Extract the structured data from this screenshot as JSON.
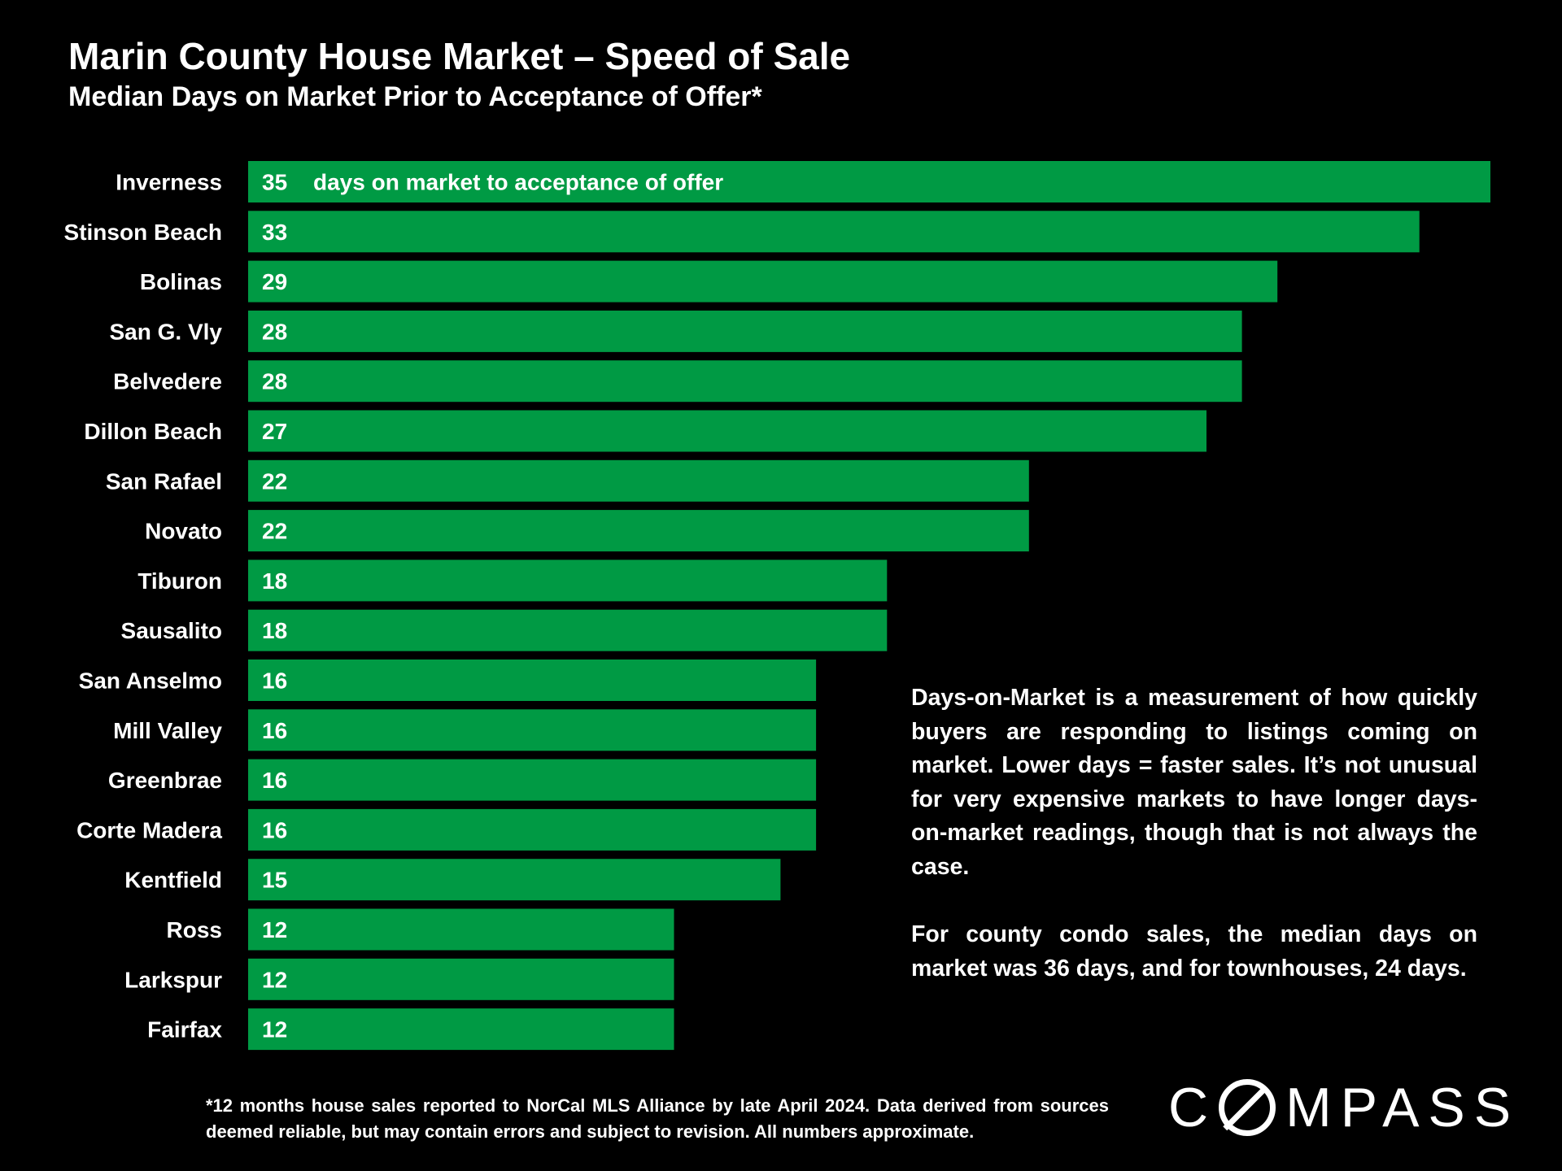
{
  "chart_data": {
    "type": "bar",
    "orientation": "horizontal",
    "title": "Marin County House Market – Speed of Sale",
    "subtitle": "Median Days on Market Prior to Acceptance of Offer*",
    "categories": [
      "Inverness",
      "Stinson Beach",
      "Bolinas",
      "San G. Vly",
      "Belvedere",
      "Dillon Beach",
      "San Rafael",
      "Novato",
      "Tiburon",
      "Sausalito",
      "San Anselmo",
      "Mill Valley",
      "Greenbrae",
      "Corte Madera",
      "Kentfield",
      "Ross",
      "Larkspur",
      "Fairfax"
    ],
    "values": [
      35,
      33,
      29,
      28,
      28,
      27,
      22,
      22,
      18,
      18,
      16,
      16,
      16,
      16,
      15,
      12,
      12,
      12
    ],
    "value_annotation": "days on market to acceptance of offer",
    "xlim": [
      0,
      35
    ],
    "grid": false,
    "bar_color": "#009A44",
    "background": "#000000"
  },
  "note": {
    "paragraph_1": "Days-on-Market is a measurement of how quickly buyers are responding to listings coming on market. Lower days = faster sales. It’s not unusual for very expensive markets to have longer days-on-market readings, though that is not always the case.",
    "paragraph_2": "For county condo sales, the median days on market was 36 days, and for townhouses, 24 days."
  },
  "footnote": "*12 months house sales reported to NorCal MLS Alliance by late April 2024. Data derived from sources deemed reliable, but may contain errors and subject to revision. All numbers approximate.",
  "logo": {
    "text": "COMPASS",
    "pre": "C",
    "post": "MPASS"
  }
}
